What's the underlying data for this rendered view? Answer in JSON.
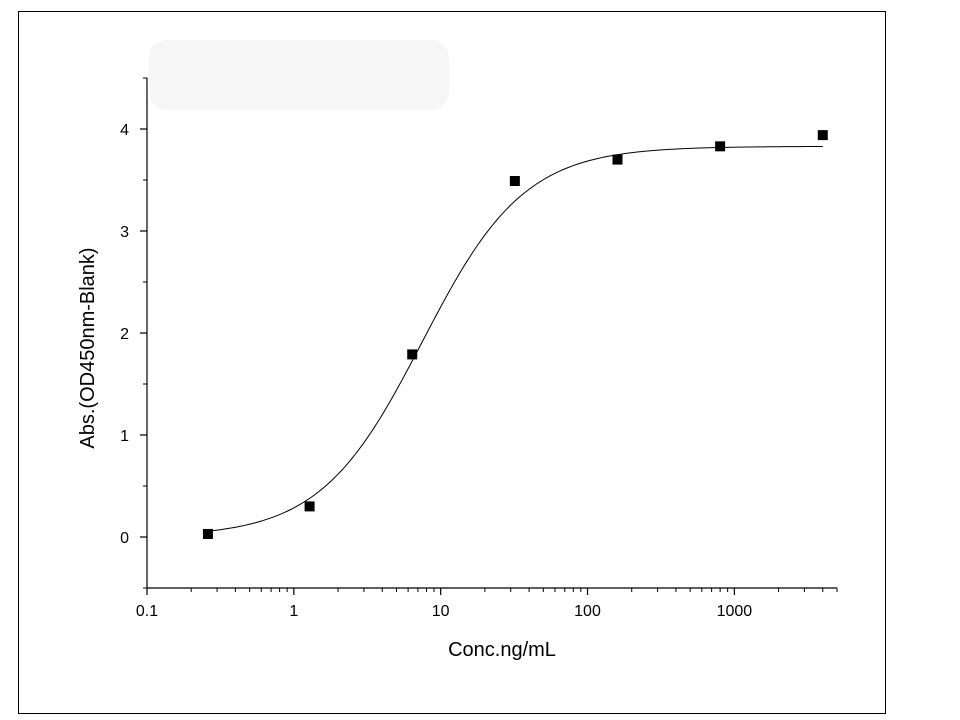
{
  "chart_data": {
    "type": "scatter",
    "title": "",
    "xlabel": "Conc.ng/mL",
    "ylabel": "Abs.(OD450nm-Blank)",
    "x_scale": "log",
    "xlim": [
      0.1,
      5000
    ],
    "ylim": [
      -0.5,
      4.5
    ],
    "x_ticks": [
      0.1,
      1,
      10,
      100,
      1000
    ],
    "x_tick_labels": [
      "0.1",
      "1",
      "10",
      "100",
      "1000"
    ],
    "y_ticks": [
      0,
      1,
      2,
      3,
      4
    ],
    "y_tick_labels": [
      "0",
      "1",
      "2",
      "3",
      "4"
    ],
    "grid": false,
    "legend": "none",
    "series": [
      {
        "marker": "square",
        "color": "#000000",
        "x": [
          0.26,
          1.28,
          6.4,
          32,
          160,
          800,
          4000
        ],
        "y": [
          0.03,
          0.3,
          1.79,
          3.49,
          3.7,
          3.83,
          3.94
        ]
      }
    ],
    "fit_curve": {
      "model": "4PL",
      "bottom": 0.0,
      "top": 3.83,
      "ec50": 7.5,
      "hill": 1.25,
      "x_range": [
        0.26,
        4000
      ],
      "color": "#000000"
    }
  }
}
